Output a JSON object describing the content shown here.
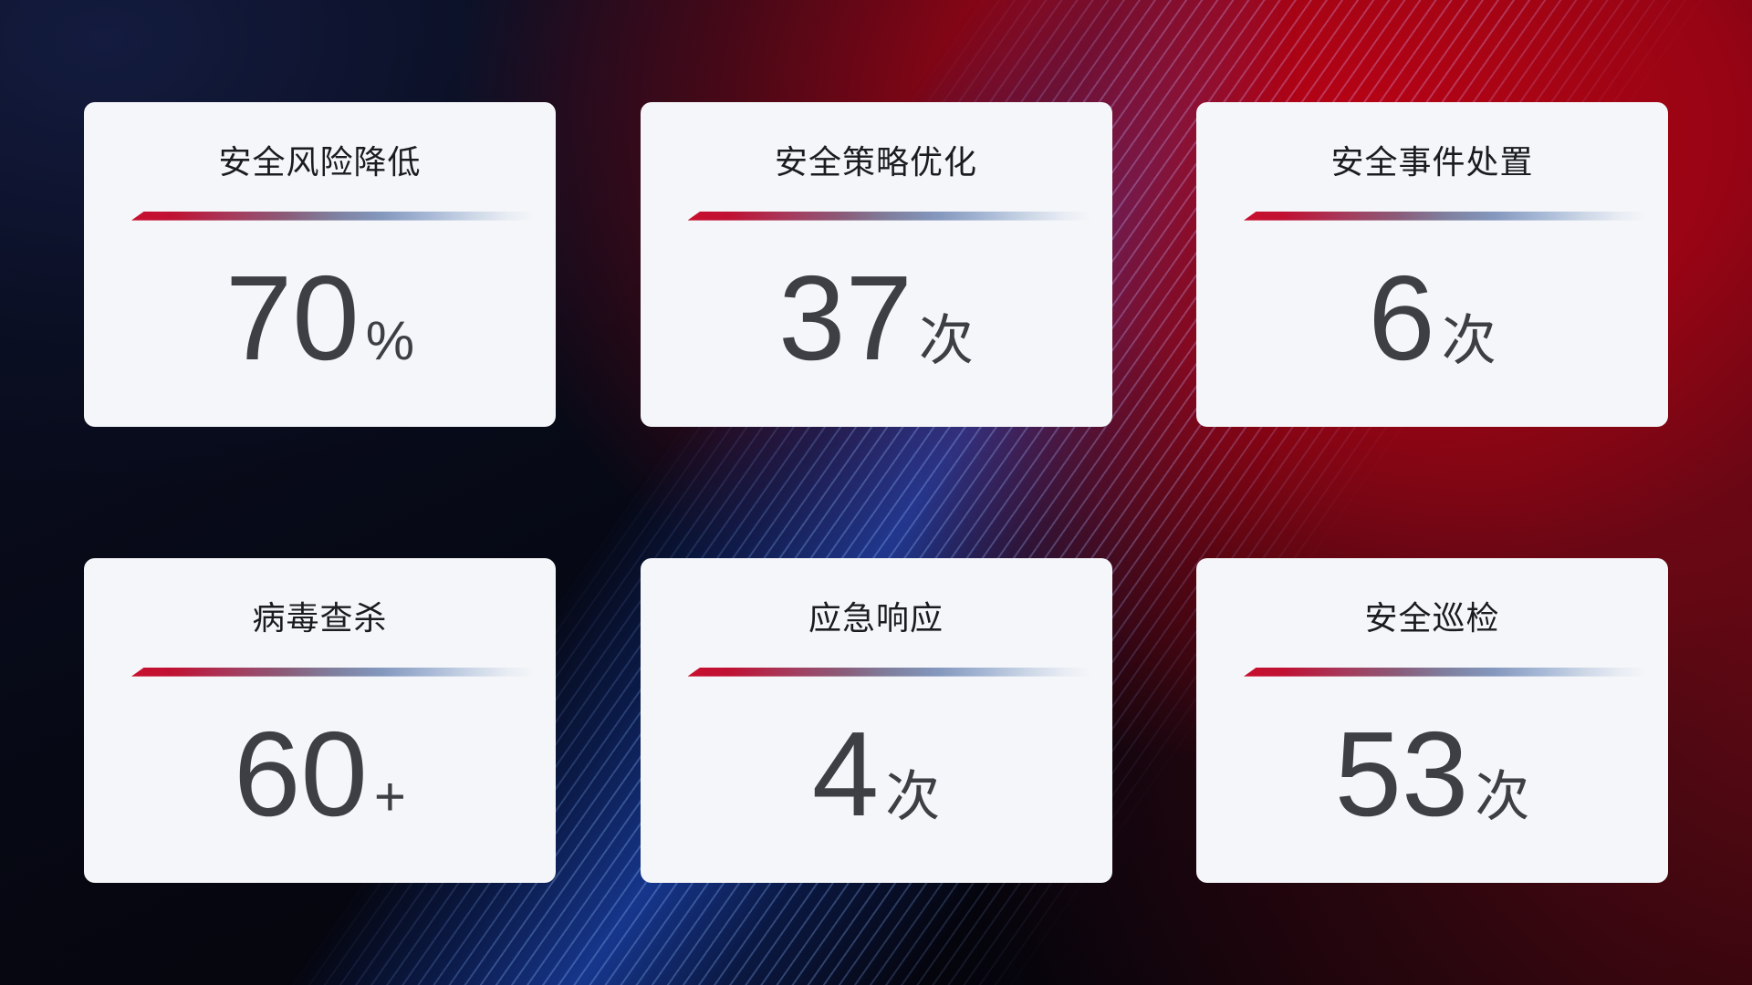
{
  "theme": {
    "background_navy": "#0A0E22",
    "background_red": "#A80413",
    "background_maroon": "#42060E",
    "streak_blue": "#82A5EE",
    "card_background": "#F5F6F9",
    "title_color": "#1B1C20",
    "value_color": "#3D3F44",
    "divider_gradient_start": "#C8102E",
    "divider_gradient_mid": "#8A5B78",
    "divider_gradient_end": "#CBD6E6"
  },
  "cards": [
    {
      "title": "安全风险降低",
      "value": "70",
      "unit": "%"
    },
    {
      "title": "安全策略优化",
      "value": "37",
      "unit": "次"
    },
    {
      "title": "安全事件处置",
      "value": "6",
      "unit": "次"
    },
    {
      "title": "病毒查杀",
      "value": "60",
      "unit": "+"
    },
    {
      "title": "应急响应",
      "value": "4",
      "unit": "次"
    },
    {
      "title": "安全巡检",
      "value": "53",
      "unit": "次"
    }
  ]
}
